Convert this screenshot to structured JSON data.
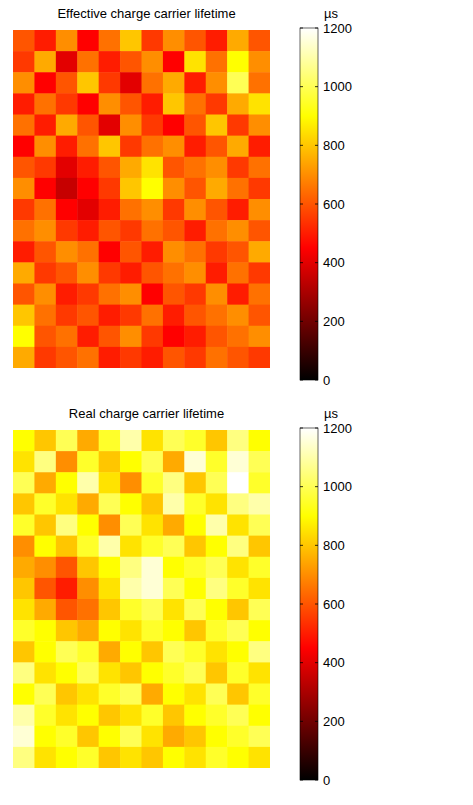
{
  "chart_data": [
    {
      "type": "heatmap",
      "title": "Effective charge carrier lifetime",
      "zlabel": "µs",
      "zlim": [
        0,
        1200
      ],
      "zticks": [
        0,
        200,
        400,
        600,
        800,
        1000,
        1200
      ],
      "cells": [
        [
          600,
          500,
          700,
          450,
          650,
          800,
          550,
          700,
          600,
          500,
          750,
          600
        ],
        [
          550,
          750,
          400,
          650,
          500,
          600,
          700,
          450,
          850,
          650,
          900,
          700
        ],
        [
          700,
          450,
          600,
          800,
          550,
          400,
          650,
          750,
          500,
          700,
          1000,
          650
        ],
        [
          500,
          650,
          550,
          450,
          700,
          600,
          500,
          800,
          650,
          550,
          750,
          850
        ],
        [
          650,
          500,
          750,
          600,
          400,
          700,
          550,
          450,
          600,
          800,
          550,
          700
        ],
        [
          450,
          700,
          500,
          650,
          800,
          550,
          650,
          700,
          500,
          600,
          750,
          500
        ],
        [
          600,
          550,
          400,
          500,
          600,
          750,
          850,
          600,
          650,
          700,
          550,
          650
        ],
        [
          700,
          450,
          350,
          450,
          550,
          800,
          900,
          700,
          600,
          750,
          650,
          550
        ],
        [
          550,
          650,
          450,
          400,
          500,
          650,
          700,
          550,
          700,
          600,
          500,
          700
        ],
        [
          650,
          700,
          550,
          500,
          600,
          550,
          650,
          600,
          500,
          650,
          700,
          600
        ],
        [
          500,
          600,
          700,
          650,
          450,
          600,
          500,
          700,
          650,
          550,
          600,
          750
        ],
        [
          750,
          550,
          600,
          700,
          550,
          500,
          600,
          650,
          700,
          500,
          650,
          550
        ],
        [
          600,
          700,
          500,
          550,
          650,
          700,
          450,
          600,
          550,
          700,
          500,
          650
        ],
        [
          800,
          650,
          550,
          600,
          500,
          550,
          650,
          500,
          600,
          650,
          700,
          600
        ],
        [
          900,
          600,
          650,
          500,
          600,
          700,
          550,
          450,
          500,
          600,
          650,
          700
        ],
        [
          750,
          550,
          600,
          650,
          500,
          550,
          500,
          600,
          550,
          650,
          600,
          550
        ]
      ]
    },
    {
      "type": "heatmap",
      "title": "Real charge carrier lifetime",
      "zlabel": "µs",
      "zlim": [
        0,
        1200
      ],
      "zticks": [
        0,
        200,
        400,
        600,
        800,
        1000,
        1200
      ],
      "cells": [
        [
          900,
          800,
          1000,
          750,
          950,
          1100,
          850,
          1000,
          950,
          800,
          1050,
          900
        ],
        [
          850,
          1050,
          700,
          950,
          800,
          900,
          1000,
          750,
          1150,
          950,
          1150,
          1000
        ],
        [
          1000,
          750,
          900,
          1100,
          850,
          700,
          950,
          1050,
          800,
          1000,
          1200,
          950
        ],
        [
          800,
          950,
          850,
          750,
          1000,
          900,
          800,
          1100,
          950,
          850,
          1050,
          1100
        ],
        [
          950,
          800,
          1050,
          900,
          700,
          1000,
          850,
          750,
          900,
          1100,
          850,
          1000
        ],
        [
          700,
          900,
          800,
          950,
          1100,
          850,
          950,
          1000,
          800,
          900,
          1050,
          800
        ],
        [
          750,
          700,
          600,
          800,
          900,
          1050,
          1150,
          900,
          950,
          1000,
          850,
          950
        ],
        [
          800,
          600,
          500,
          700,
          850,
          1100,
          1150,
          1000,
          900,
          1050,
          950,
          850
        ],
        [
          850,
          750,
          600,
          650,
          800,
          950,
          1000,
          850,
          1000,
          900,
          800,
          1000
        ],
        [
          950,
          900,
          800,
          750,
          900,
          850,
          950,
          900,
          800,
          950,
          1000,
          900
        ],
        [
          800,
          900,
          1000,
          950,
          750,
          900,
          800,
          1000,
          950,
          850,
          900,
          1050
        ],
        [
          1050,
          850,
          900,
          1000,
          850,
          800,
          900,
          950,
          1000,
          800,
          950,
          850
        ],
        [
          900,
          1000,
          800,
          850,
          950,
          1000,
          750,
          900,
          850,
          1000,
          800,
          950
        ],
        [
          1100,
          950,
          850,
          900,
          800,
          850,
          950,
          800,
          900,
          950,
          1000,
          900
        ],
        [
          1150,
          900,
          950,
          800,
          900,
          1000,
          850,
          750,
          800,
          900,
          950,
          1000
        ],
        [
          1050,
          850,
          900,
          950,
          800,
          850,
          800,
          900,
          850,
          950,
          900,
          850
        ]
      ]
    }
  ]
}
